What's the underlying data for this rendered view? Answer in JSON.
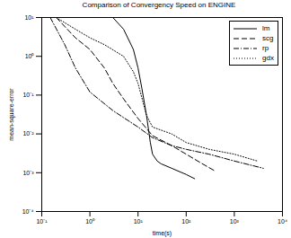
{
  "chart_data": {
    "type": "line",
    "title": "Comparison of Convergency Speed on ENGINE",
    "x_label": "time(s)",
    "y_label": "mean-square-error",
    "log": true,
    "grid": false,
    "legend": "upper right",
    "xlim": [
      0.1,
      10000
    ],
    "ylim": [
      0.0001,
      10
    ],
    "xticks": [
      {
        "value": 0.1,
        "label": "10⁻¹"
      },
      {
        "value": 1,
        "label": "10⁰"
      },
      {
        "value": 10,
        "label": "10¹"
      },
      {
        "value": 100,
        "label": "10²"
      },
      {
        "value": 1000,
        "label": "10³"
      },
      {
        "value": 10000,
        "label": "10⁴"
      }
    ],
    "yticks": [
      {
        "value": 0.0001,
        "label": "10⁻⁴"
      },
      {
        "value": 0.001,
        "label": "10⁻³"
      },
      {
        "value": 0.01,
        "label": "10⁻²"
      },
      {
        "value": 0.1,
        "label": "10⁻¹"
      },
      {
        "value": 1,
        "label": "10⁰"
      },
      {
        "value": 10,
        "label": "10¹"
      }
    ],
    "series": [
      {
        "name": "lm",
        "color": "#000000",
        "line_style": "solid",
        "x": [
          3,
          5,
          8,
          10,
          12,
          15,
          18,
          20,
          25,
          30,
          50,
          100,
          150
        ],
        "values": [
          10,
          5,
          1.5,
          0.5,
          0.15,
          0.03,
          0.006,
          0.003,
          0.002,
          0.0017,
          0.0013,
          0.0009,
          0.0007
        ]
      },
      {
        "name": "scg",
        "color": "#000000",
        "line_style": "dashed",
        "x": [
          0.2,
          0.5,
          1,
          2,
          3,
          5,
          10,
          20,
          50,
          100,
          200,
          400
        ],
        "values": [
          10,
          3,
          1.5,
          0.5,
          0.2,
          0.08,
          0.025,
          0.009,
          0.005,
          0.003,
          0.0018,
          0.0011
        ]
      },
      {
        "name": "rp",
        "color": "#000000",
        "line_style": "dashdot",
        "x": [
          0.15,
          0.3,
          0.5,
          1,
          3,
          10,
          20,
          50,
          100,
          300,
          1000,
          4000
        ],
        "values": [
          10,
          2,
          0.5,
          0.12,
          0.04,
          0.015,
          0.008,
          0.005,
          0.004,
          0.003,
          0.002,
          0.0013
        ]
      },
      {
        "name": "gdx",
        "color": "#000000",
        "line_style": "dotted",
        "x": [
          0.2,
          0.5,
          1,
          2,
          5,
          8,
          10,
          15,
          20,
          50,
          100,
          300,
          1000,
          3000
        ],
        "values": [
          10,
          5,
          3,
          2,
          1,
          0.4,
          0.2,
          0.03,
          0.015,
          0.01,
          0.006,
          0.004,
          0.003,
          0.002
        ]
      }
    ]
  }
}
